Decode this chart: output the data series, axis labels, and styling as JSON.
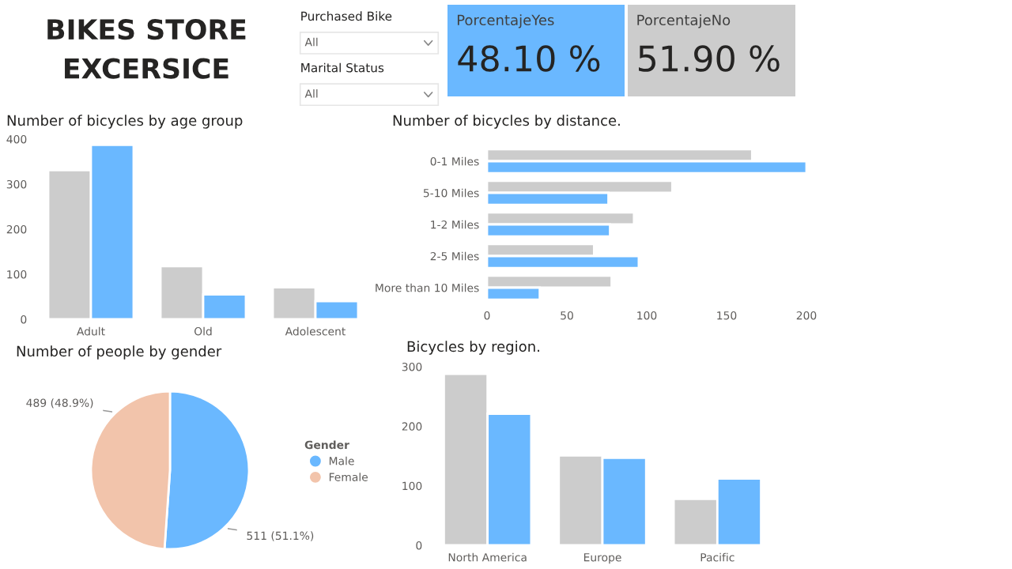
{
  "chart_data": [
    {
      "type": "other",
      "title": "BIKES STORE EXCERSICE"
    },
    {
      "type": "other",
      "annotations": [
        "Purchased Bike",
        "All",
        "Marital Status",
        "All"
      ]
    },
    {
      "type": "other",
      "title": "PorcentajeYes",
      "annotations": [
        "48.10 %"
      ],
      "color": "#6ab8ff"
    },
    {
      "type": "other",
      "title": "PorcentajeNo",
      "annotations": [
        "51.90 %"
      ],
      "color": "#cccccc"
    },
    {
      "type": "bar",
      "title": "Number of bicycles by age group",
      "categories": [
        "Adult",
        "Old",
        "Adolescent"
      ],
      "ylim": [
        0,
        400
      ],
      "yticks": [
        0,
        100,
        200,
        300,
        400
      ],
      "grid": false,
      "series": [
        {
          "color": "#cccccc",
          "values": [
            331,
            118,
            71
          ]
        },
        {
          "color": "#6ab8ff",
          "values": [
            387,
            55,
            40
          ]
        }
      ]
    },
    {
      "type": "bar",
      "orientation": "horizontal",
      "title": "Number of bicycles by distance.",
      "categories": [
        "0-1 Miles",
        "5-10 Miles",
        "1-2 Miles",
        "2-5 Miles",
        "More than 10 Miles"
      ],
      "xlim": [
        0,
        200
      ],
      "xticks": [
        0,
        50,
        100,
        150,
        200
      ],
      "grid": false,
      "series": [
        {
          "color": "#cccccc",
          "values": [
            166,
            116,
            92,
            67,
            78
          ]
        },
        {
          "color": "#6ab8ff",
          "values": [
            200,
            76,
            77,
            95,
            33
          ]
        }
      ]
    },
    {
      "type": "pie",
      "title": "Number of people by gender",
      "legend_title": "Gender",
      "legend": "right",
      "categories": [
        "Male",
        "Female"
      ],
      "values": [
        511,
        489
      ],
      "colors": [
        "#6ab8ff",
        "#f2c4ab"
      ],
      "value_labels": [
        "511 (51.1%)",
        "489 (48.9%)"
      ]
    },
    {
      "type": "bar",
      "title": "Bicycles by region.",
      "categories": [
        "North America",
        "Europe",
        "Pacific"
      ],
      "ylim": [
        0,
        300
      ],
      "yticks": [
        0,
        100,
        200,
        300
      ],
      "grid": false,
      "series": [
        {
          "color": "#cccccc",
          "values": [
            288,
            151,
            78
          ]
        },
        {
          "color": "#6ab8ff",
          "values": [
            221,
            147,
            112
          ]
        }
      ]
    }
  ]
}
